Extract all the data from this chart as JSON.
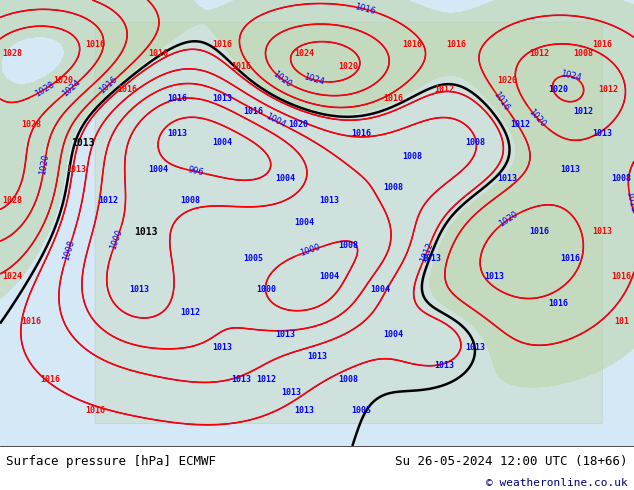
{
  "title_left": "Surface pressure [hPa] ECMWF",
  "title_right": "Su 26-05-2024 12:00 UTC (18+66)",
  "copyright": "© weatheronline.co.uk",
  "bg_color": "#ffffff",
  "map_bg": "#d4e8f5",
  "land_color": "#c8c8a0",
  "green_region": "#b8d4a0",
  "bottom_bar_color": "#000000",
  "text_color": "#000000",
  "figsize": [
    6.34,
    4.9
  ],
  "dpi": 100
}
